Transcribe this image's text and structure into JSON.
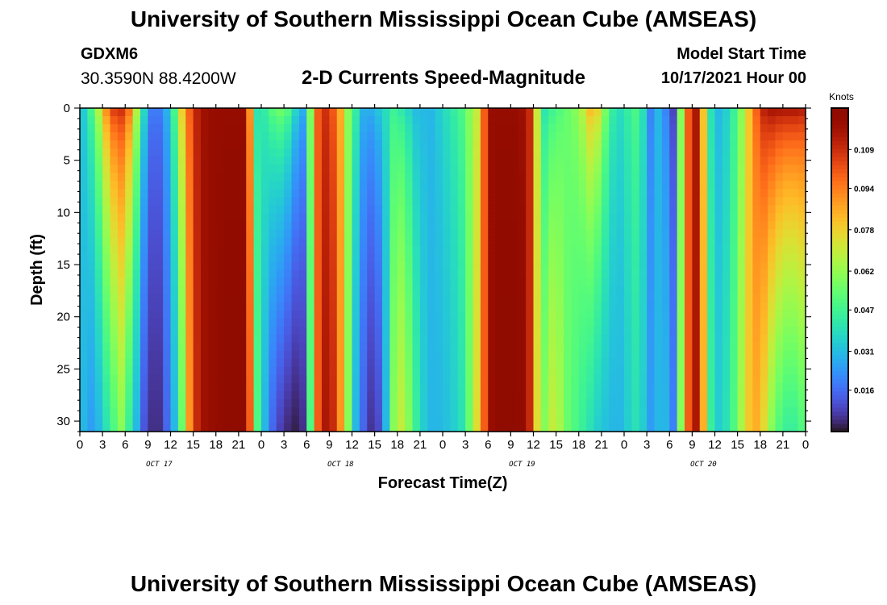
{
  "header": {
    "title": "University of Southern Mississippi Ocean Cube (AMSEAS)",
    "station": "GDXM6",
    "coords": "30.3590N  88.4200W",
    "subtitle": "2-D Currents Speed-Magnitude",
    "start_label": "Model Start Time",
    "start_value": "10/17/2021 Hour 00"
  },
  "footer": {
    "title": "University of Southern Mississippi Ocean Cube (AMSEAS)"
  },
  "chart_data": {
    "type": "heatmap",
    "title": "2-D Currents Speed-Magnitude",
    "xlabel": "Forecast Time(Z)",
    "ylabel": "Depth (ft)",
    "x_range_hours": [
      0,
      96
    ],
    "x_tick_labels": [
      "0",
      "3",
      "6",
      "9",
      "12",
      "15",
      "18",
      "21",
      "0",
      "3",
      "6",
      "9",
      "12",
      "15",
      "18",
      "21",
      "0",
      "3",
      "6",
      "9",
      "12",
      "15",
      "18",
      "21",
      "0",
      "3",
      "6",
      "9",
      "12",
      "15",
      "18",
      "21",
      "0"
    ],
    "day_labels": [
      {
        "label": "OCT 17",
        "hour": 10.5
      },
      {
        "label": "OCT 18",
        "hour": 34.5
      },
      {
        "label": "OCT 19",
        "hour": 58.5
      },
      {
        "label": "OCT 20",
        "hour": 82.5
      }
    ],
    "y_range_ft": [
      0,
      31
    ],
    "y_reversed": true,
    "y_ticks": [
      0,
      5,
      10,
      15,
      20,
      25,
      30
    ],
    "colorbar": {
      "unit": "Knots",
      "min": 0.0,
      "max": 0.125,
      "ticks": [
        0.016,
        0.031,
        0.047,
        0.062,
        0.078,
        0.094,
        0.109
      ],
      "colormap": "turbo"
    },
    "speed_profile_knots": {
      "hours": [
        0,
        1,
        2,
        3,
        4,
        5,
        6,
        7,
        8,
        9,
        10,
        11,
        12,
        13,
        14,
        15,
        16,
        17,
        18,
        19,
        20,
        21,
        22,
        23,
        24,
        25,
        26,
        27,
        28,
        29,
        30,
        31,
        32,
        33,
        34,
        35,
        36,
        37,
        38,
        39,
        40,
        41,
        42,
        43,
        44,
        45,
        46,
        47,
        48,
        49,
        50,
        51,
        52,
        53,
        54,
        55,
        56,
        57,
        58,
        59,
        60,
        61,
        62,
        63,
        64,
        65,
        66,
        67,
        68,
        69,
        70,
        71,
        72,
        73,
        74,
        75,
        76,
        77,
        78,
        79,
        80,
        81,
        82,
        83,
        84,
        85,
        86,
        87,
        88,
        89,
        90,
        91,
        92,
        93,
        94,
        95,
        96
      ],
      "surface": [
        0.035,
        0.05,
        0.07,
        0.095,
        0.11,
        0.112,
        0.1,
        0.07,
        0.04,
        0.02,
        0.02,
        0.03,
        0.05,
        0.08,
        0.1,
        0.112,
        0.118,
        0.12,
        0.12,
        0.12,
        0.12,
        0.12,
        0.09,
        0.04,
        0.045,
        0.055,
        0.06,
        0.055,
        0.04,
        0.03,
        0.06,
        0.1,
        0.108,
        0.1,
        0.085,
        0.06,
        0.045,
        0.03,
        0.03,
        0.035,
        0.04,
        0.045,
        0.04,
        0.035,
        0.03,
        0.03,
        0.03,
        0.035,
        0.04,
        0.045,
        0.05,
        0.06,
        0.07,
        0.1,
        0.12,
        0.12,
        0.12,
        0.12,
        0.118,
        0.11,
        0.07,
        0.04,
        0.045,
        0.05,
        0.055,
        0.06,
        0.07,
        0.085,
        0.08,
        0.06,
        0.045,
        0.04,
        0.045,
        0.05,
        0.04,
        0.02,
        0.03,
        0.02,
        0.008,
        0.06,
        0.1,
        0.115,
        0.08,
        0.04,
        0.03,
        0.035,
        0.045,
        0.06,
        0.08,
        0.1,
        0.115,
        0.12,
        0.12,
        0.12,
        0.12,
        0.118,
        0.11
      ],
      "bottom": [
        0.03,
        0.025,
        0.03,
        0.04,
        0.05,
        0.06,
        0.045,
        0.03,
        0.012,
        0.005,
        0.005,
        0.015,
        0.03,
        0.055,
        0.09,
        0.11,
        0.118,
        0.12,
        0.122,
        0.124,
        0.124,
        0.124,
        0.1,
        0.05,
        0.03,
        0.015,
        0.008,
        0.004,
        0.002,
        0.005,
        0.05,
        0.1,
        0.115,
        0.11,
        0.09,
        0.06,
        0.03,
        0.015,
        0.006,
        0.01,
        0.03,
        0.06,
        0.07,
        0.06,
        0.045,
        0.035,
        0.03,
        0.03,
        0.032,
        0.035,
        0.04,
        0.055,
        0.075,
        0.1,
        0.12,
        0.124,
        0.124,
        0.124,
        0.122,
        0.11,
        0.075,
        0.06,
        0.07,
        0.065,
        0.055,
        0.05,
        0.045,
        0.04,
        0.035,
        0.032,
        0.03,
        0.03,
        0.035,
        0.04,
        0.035,
        0.025,
        0.03,
        0.03,
        0.02,
        0.06,
        0.1,
        0.115,
        0.085,
        0.045,
        0.035,
        0.04,
        0.05,
        0.065,
        0.08,
        0.085,
        0.075,
        0.06,
        0.05,
        0.045,
        0.045,
        0.05,
        0.055
      ]
    }
  }
}
